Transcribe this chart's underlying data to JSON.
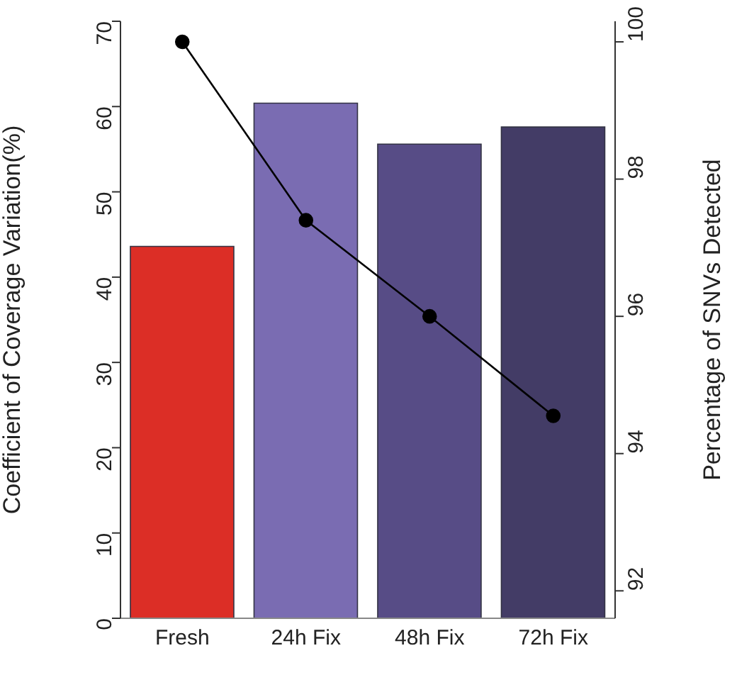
{
  "chart_data": {
    "type": "bar",
    "ylabel": "Coefficient of Coverage Variation(%)",
    "y2label": "Percentage of SNVs Detected",
    "categories": [
      "Fresh",
      "24h Fix",
      "48h Fix",
      "72h Fix"
    ],
    "series": [
      {
        "colors": [
          "#dc2e26",
          "#7a6cb2",
          "#574c86",
          "#433c66"
        ],
        "values": [
          43.6,
          60.4,
          55.6,
          57.6
        ]
      },
      {
        "type": "line",
        "axis": "y2",
        "color": "#000000",
        "marker": "circle",
        "line_style": "solid",
        "values": [
          100,
          97.4,
          96.0,
          94.55
        ]
      }
    ],
    "ylim": [
      0,
      70
    ],
    "yticks": [
      0,
      10,
      20,
      30,
      40,
      50,
      60,
      70
    ],
    "y2lim": [
      91.6,
      100.3
    ],
    "y2ticks": [
      92,
      94,
      96,
      98,
      100
    ],
    "grid": false,
    "legend": false
  }
}
